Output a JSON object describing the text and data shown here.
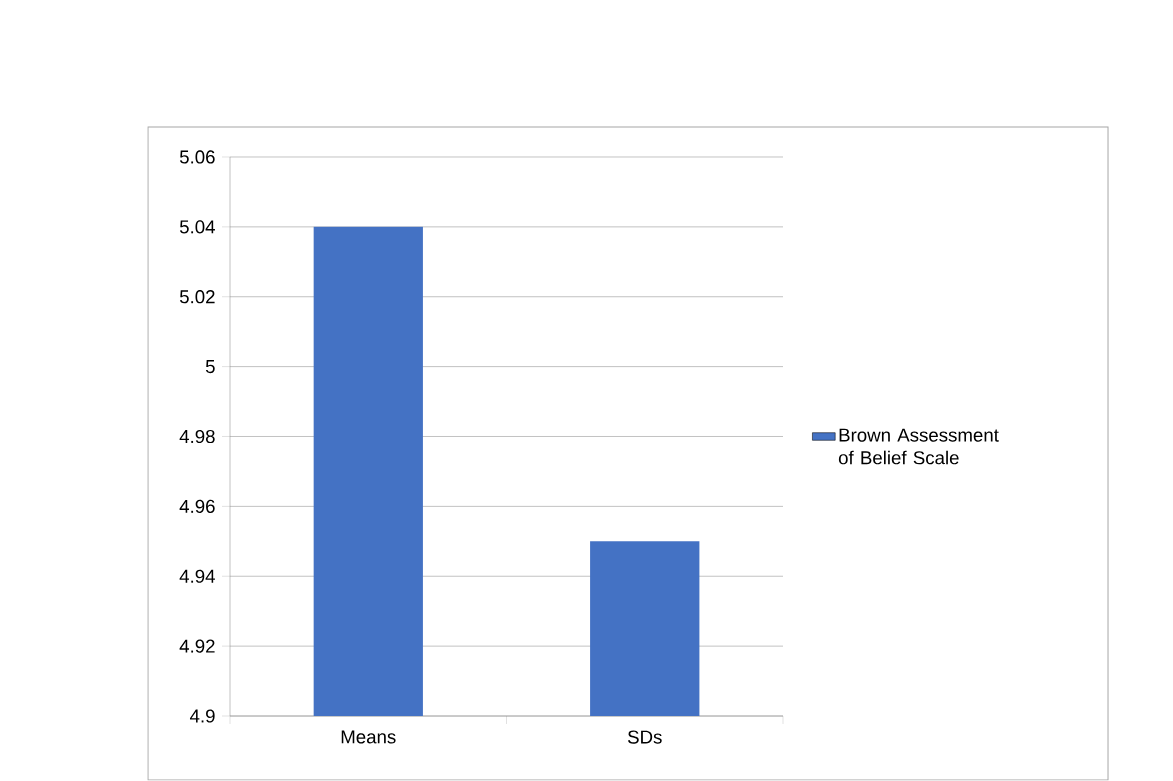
{
  "chart_data": {
    "type": "bar",
    "categories": [
      "Means",
      "SDs"
    ],
    "series": [
      {
        "name": "Brown Assessment of Belief Scale",
        "color": "#4472c4",
        "values": [
          5.04,
          4.95
        ]
      }
    ],
    "ylim": [
      4.9,
      5.06
    ],
    "yticks": [
      4.9,
      4.92,
      4.94,
      4.96,
      4.98,
      5,
      5.02,
      5.04,
      5.06
    ],
    "grid": "y",
    "legend": "right"
  }
}
